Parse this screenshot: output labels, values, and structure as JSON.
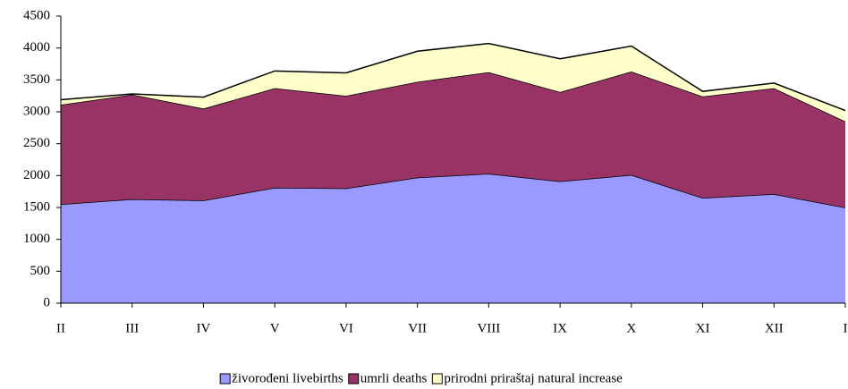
{
  "chart_data": {
    "type": "stacked_area",
    "categories": [
      "II",
      "III",
      "IV",
      "V",
      "VI",
      "VII",
      "VIII",
      "IX",
      "X",
      "XI",
      "XII",
      "I"
    ],
    "series": [
      {
        "name": "živorođeni livebirths",
        "color": "#9999ff",
        "values": [
          1550,
          1630,
          1610,
          1810,
          1800,
          1970,
          2030,
          1910,
          2010,
          1650,
          1710,
          1500
        ]
      },
      {
        "name": "umrli deaths",
        "color": "#993366",
        "values": [
          1560,
          1640,
          1440,
          1560,
          1450,
          1500,
          1590,
          1400,
          1620,
          1590,
          1660,
          1350
        ]
      },
      {
        "name": "prirodni priraštaj natural increase",
        "color": "#ffffcc",
        "values": [
          80,
          10,
          180,
          270,
          360,
          480,
          450,
          520,
          400,
          80,
          80,
          170
        ]
      }
    ],
    "ylim": [
      0,
      4500
    ],
    "yticks": [
      0,
      500,
      1000,
      1500,
      2000,
      2500,
      3000,
      3500,
      4000,
      4500
    ],
    "legend": "bottom",
    "grid": false
  }
}
